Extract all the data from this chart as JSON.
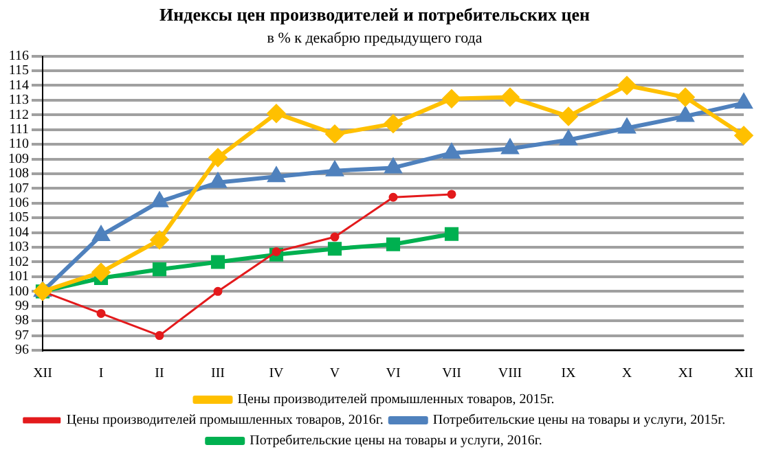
{
  "chart_data": {
    "type": "line",
    "title": "Индексы цен производителей и потребительских цен",
    "subtitle": "в % к декабрю предыдущего года",
    "categories": [
      "XII",
      "I",
      "II",
      "III",
      "IV",
      "V",
      "VI",
      "VII",
      "VIII",
      "IX",
      "X",
      "XI",
      "XII"
    ],
    "series": [
      {
        "name": "Цены производителей промышленных товаров, 2015г.",
        "color": "#ffc000",
        "marker": "diamond",
        "values": [
          100,
          101.3,
          103.5,
          109.1,
          112.1,
          110.7,
          111.4,
          113.1,
          113.2,
          111.9,
          114.0,
          113.2,
          110.6
        ]
      },
      {
        "name": "Цены производителей промышленных товаров, 2016г.",
        "color": "#e31a1c",
        "marker": "circle",
        "values": [
          100,
          98.5,
          97.0,
          100.0,
          102.7,
          103.7,
          106.4,
          106.6,
          null,
          null,
          null,
          null,
          null
        ]
      },
      {
        "name": "Потребительские цены на товары и услуги, 2015г.",
        "color": "#4f81bd",
        "marker": "triangle",
        "values": [
          100,
          103.8,
          106.1,
          107.4,
          107.8,
          108.2,
          108.4,
          109.4,
          109.7,
          110.3,
          111.1,
          111.9,
          112.8
        ]
      },
      {
        "name": "Потребительские цены на товары и услуги, 2016г.",
        "color": "#00b050",
        "marker": "square",
        "values": [
          100,
          100.9,
          101.5,
          102.0,
          102.5,
          102.9,
          103.2,
          103.9,
          null,
          null,
          null,
          null,
          null
        ]
      }
    ],
    "ylim": [
      96,
      116
    ],
    "yticks": [
      96,
      97,
      98,
      99,
      100,
      101,
      102,
      103,
      104,
      105,
      106,
      107,
      108,
      109,
      110,
      111,
      112,
      113,
      114,
      115,
      116
    ],
    "grid": "y",
    "legend": "bottom"
  }
}
